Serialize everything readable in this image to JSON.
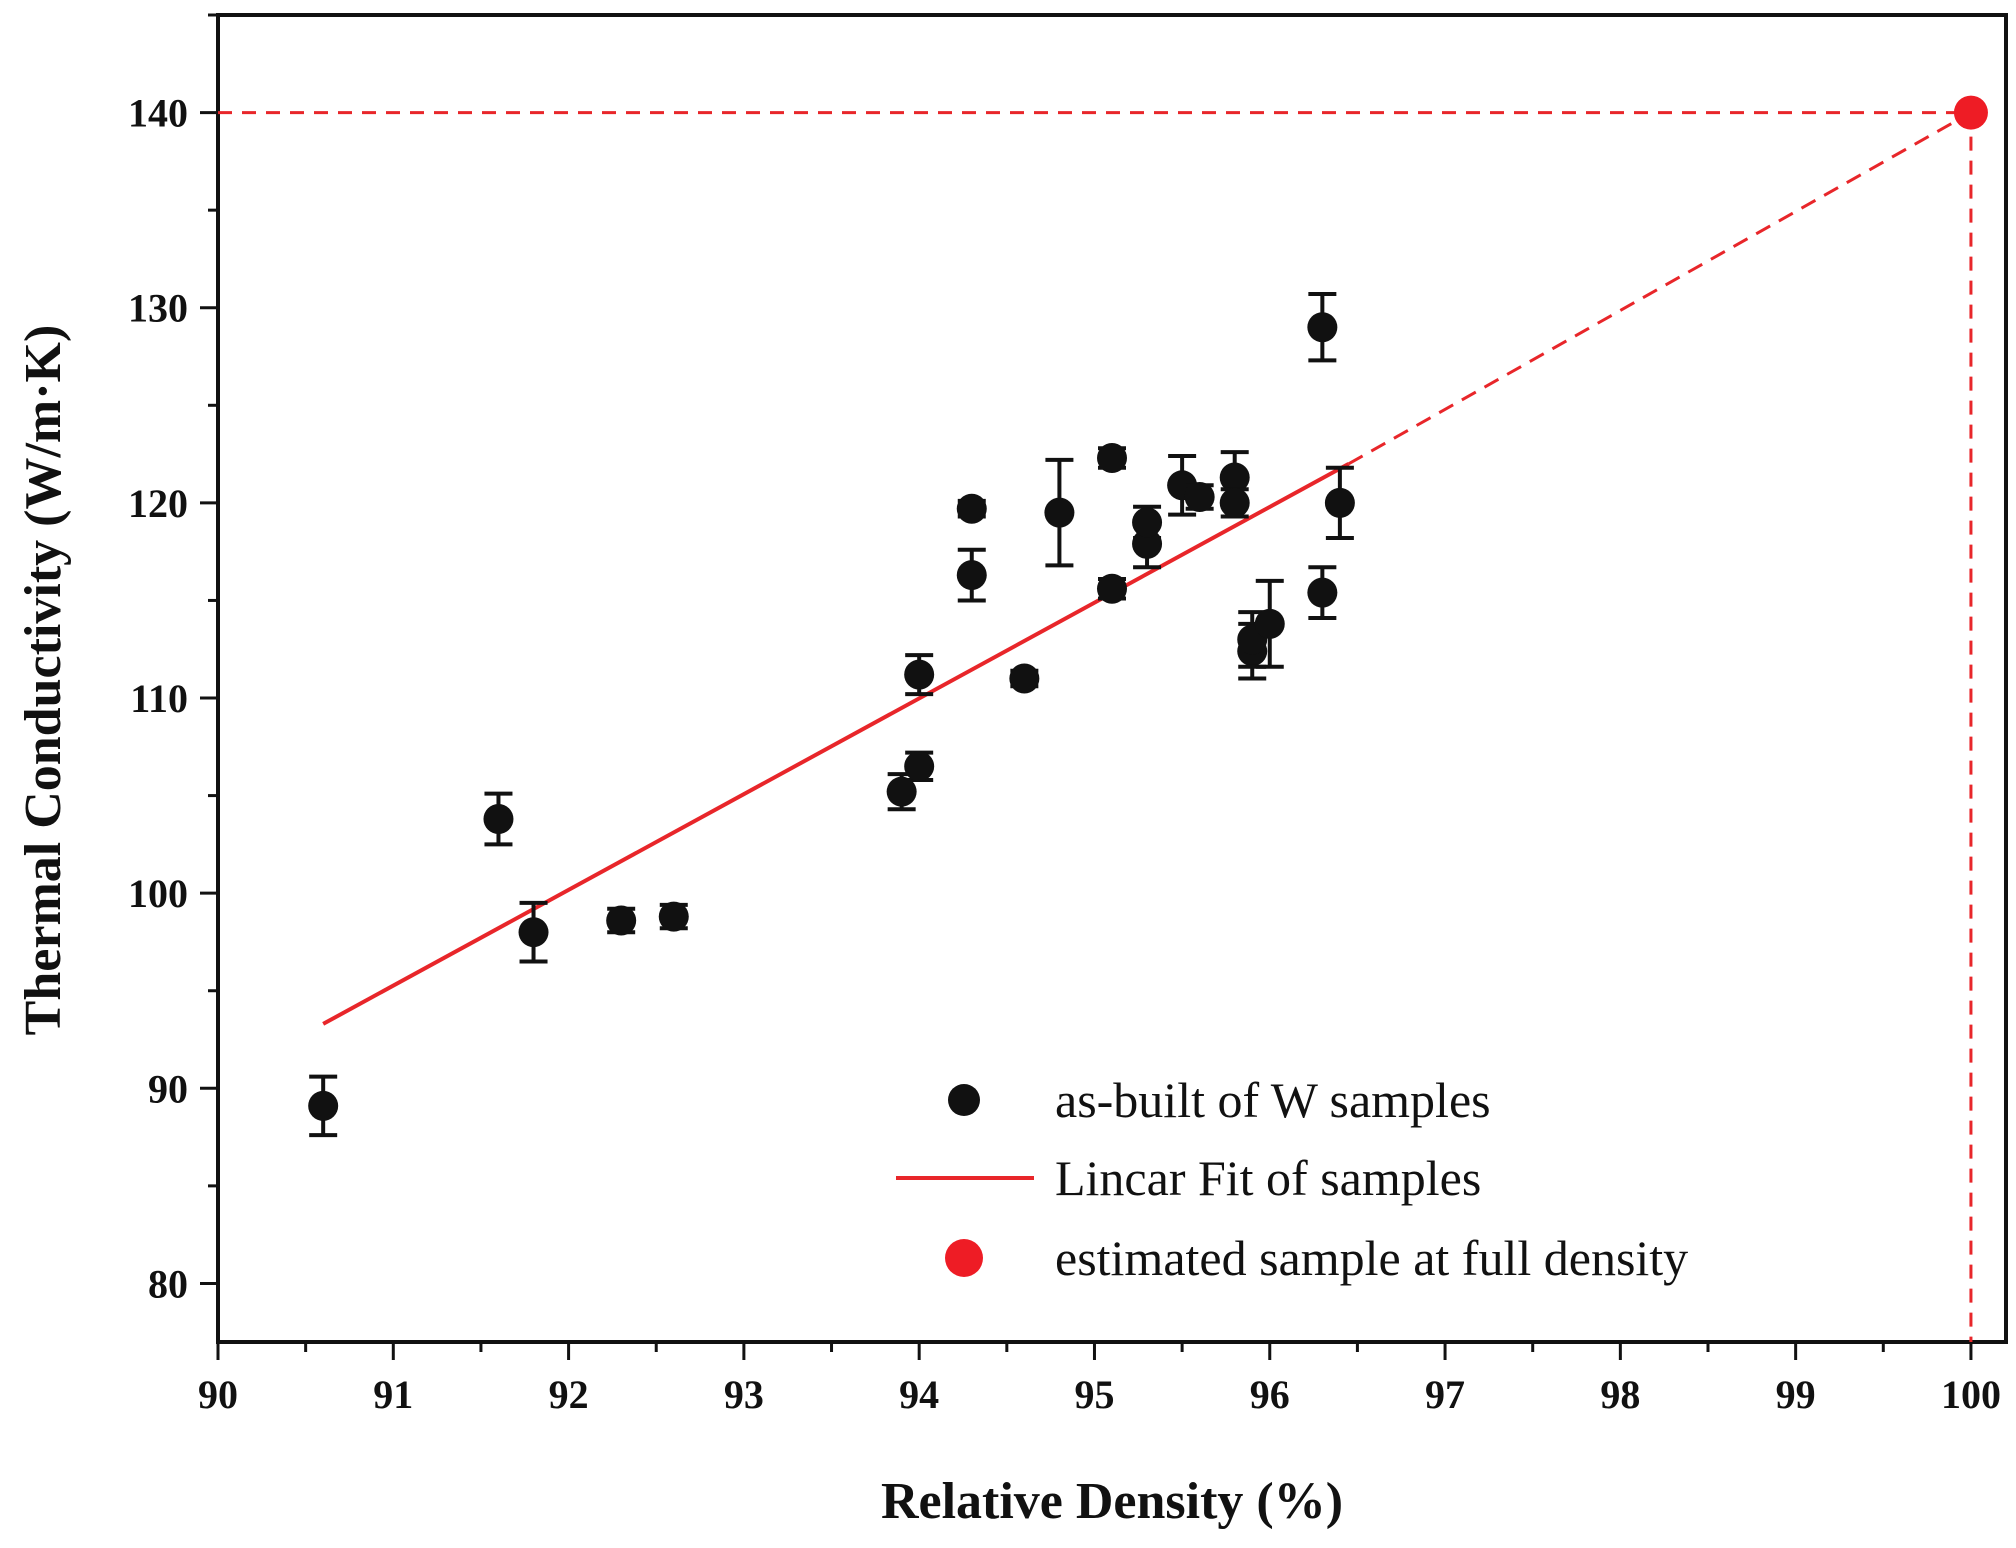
{
  "chart_data": {
    "type": "scatter",
    "title": "",
    "xlabel": "Relative Density (%)",
    "ylabel": "Thermal Conductivity (W/m·K)",
    "xlim": [
      90,
      100.2
    ],
    "ylim": [
      77,
      145
    ],
    "x_ticks": [
      90,
      91,
      92,
      93,
      94,
      95,
      96,
      97,
      98,
      99,
      100
    ],
    "y_ticks": [
      80,
      90,
      100,
      110,
      120,
      130,
      140
    ],
    "grid": false,
    "legend_position": "bottom-right",
    "series": [
      {
        "name": "as-built of W samples",
        "kind": "points",
        "color": "#111111",
        "points": [
          {
            "x": 90.6,
            "y": 89.1,
            "err": 1.5
          },
          {
            "x": 91.6,
            "y": 103.8,
            "err": 1.3
          },
          {
            "x": 91.8,
            "y": 98.0,
            "err": 1.5
          },
          {
            "x": 92.3,
            "y": 98.6,
            "err": 0.6
          },
          {
            "x": 92.6,
            "y": 98.8,
            "err": 0.6
          },
          {
            "x": 93.9,
            "y": 105.2,
            "err": 0.9
          },
          {
            "x": 94.0,
            "y": 106.5,
            "err": 0.7
          },
          {
            "x": 94.0,
            "y": 111.2,
            "err": 1.0
          },
          {
            "x": 94.3,
            "y": 116.3,
            "err": 1.3
          },
          {
            "x": 94.3,
            "y": 119.7,
            "err": 0.4
          },
          {
            "x": 94.6,
            "y": 111.0,
            "err": 0.4
          },
          {
            "x": 94.8,
            "y": 119.5,
            "err": 2.7
          },
          {
            "x": 95.1,
            "y": 122.3,
            "err": 0.5
          },
          {
            "x": 95.1,
            "y": 115.6,
            "err": 0.5
          },
          {
            "x": 95.3,
            "y": 117.9,
            "err": 1.2
          },
          {
            "x": 95.3,
            "y": 119.0,
            "err": 0.8
          },
          {
            "x": 95.5,
            "y": 120.9,
            "err": 1.5
          },
          {
            "x": 95.6,
            "y": 120.3,
            "err": 0.6
          },
          {
            "x": 95.8,
            "y": 121.3,
            "err": 1.3
          },
          {
            "x": 95.8,
            "y": 120.0,
            "err": 0.7
          },
          {
            "x": 95.9,
            "y": 112.4,
            "err": 1.4
          },
          {
            "x": 95.9,
            "y": 113.0,
            "err": 1.4
          },
          {
            "x": 96.0,
            "y": 113.8,
            "err": 2.2
          },
          {
            "x": 96.3,
            "y": 115.4,
            "err": 1.3
          },
          {
            "x": 96.3,
            "y": 129.0,
            "err": 1.7
          },
          {
            "x": 96.4,
            "y": 120.0,
            "err": 1.8
          }
        ]
      },
      {
        "name": "Lincar Fit of samples",
        "kind": "line",
        "color": "#e8262a",
        "solid_x": [
          90.6,
          96.45
        ],
        "solid_y": [
          93.3,
          122.0
        ],
        "dashed_x": [
          96.45,
          100.0
        ],
        "dashed_y": [
          122.0,
          140.0
        ]
      },
      {
        "name": "estimated sample at full density",
        "kind": "point",
        "color": "#ee1c25",
        "x": 100.0,
        "y": 140.0
      }
    ],
    "guide_lines": {
      "color": "#e8262a",
      "x": 100.0,
      "y": 140.0
    }
  }
}
